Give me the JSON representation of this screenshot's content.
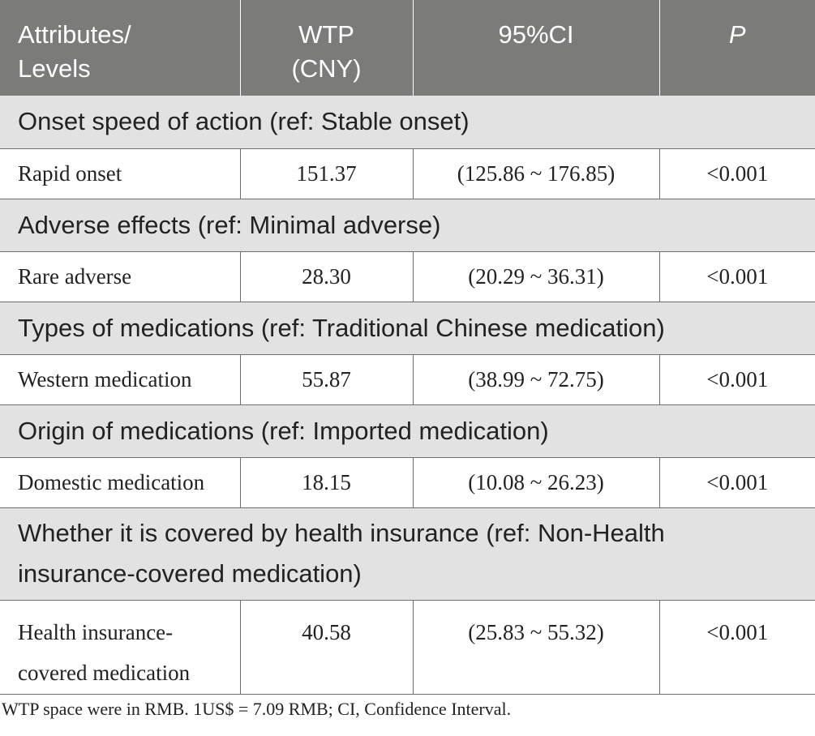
{
  "table": {
    "header": {
      "col1_line1": "Attributes/",
      "col1_line2": "Levels",
      "col2_line1": "WTP",
      "col2_line2": "(CNY)",
      "col3": "95%CI",
      "col4": "P"
    },
    "groups": [
      {
        "title": "Onset speed of action (ref: Stable onset)",
        "level": "Rapid onset",
        "wtp": "151.37",
        "ci": "(125.86 ~ 176.85)",
        "p": "<0.001"
      },
      {
        "title": "Adverse effects (ref: Minimal adverse)",
        "level": "Rare adverse",
        "wtp": "28.30",
        "ci": "(20.29 ~ 36.31)",
        "p": "<0.001"
      },
      {
        "title": "Types of medications (ref: Traditional Chinese medication)",
        "level": "Western medication",
        "wtp": "55.87",
        "ci": "(38.99 ~ 72.75)",
        "p": "<0.001"
      },
      {
        "title": "Origin of medications (ref: Imported medication)",
        "level": "Domestic medication",
        "wtp": "18.15",
        "ci": "(10.08 ~ 26.23)",
        "p": "<0.001"
      },
      {
        "title_line1": "Whether it is covered by health insurance (ref: Non-Health",
        "title_line2": "insurance-covered medication)",
        "level_line1": "Health insurance-",
        "level_line2": "covered medication",
        "wtp": "40.58",
        "ci": "(25.83 ~ 55.32)",
        "p": "<0.001"
      }
    ]
  },
  "footnote": "WTP space were in RMB. 1US$ = 7.09 RMB; CI, Confidence Interval.",
  "colors": {
    "header_bg": "#7b7b79",
    "group_bg": "#e3e2e2",
    "border": "#6e6e6e"
  }
}
